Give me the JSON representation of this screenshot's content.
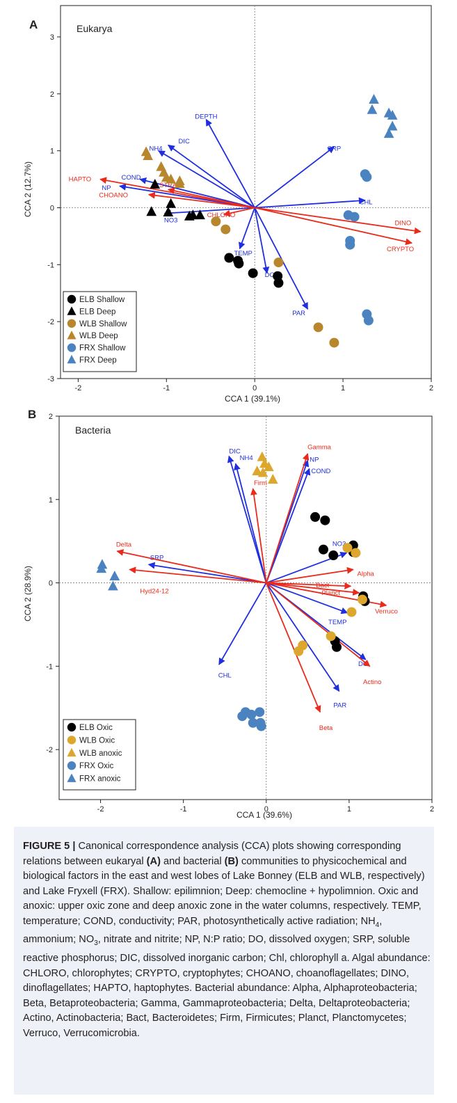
{
  "colors": {
    "env_arrow": "#1f2fe0",
    "taxa_arrow": "#ea2a1a",
    "elb": "#000000",
    "wlb_a": "#b8862c",
    "wlb_b": "#dda72d",
    "frx": "#4a83c0",
    "caption_bg": "#eef2f8"
  },
  "chart_data": [
    {
      "type": "scatter",
      "panel_label": "A",
      "title": "Eukarya",
      "xlabel": "CCA 1 (39.1%)",
      "ylabel": "CCA 2 (12.7%)",
      "xlim": [
        -2.2,
        2.0
      ],
      "ylim": [
        -3.0,
        3.55
      ],
      "xticks": [
        -2,
        -1,
        0,
        1,
        2
      ],
      "yticks": [
        -3,
        -2,
        -1,
        0,
        1,
        2,
        3
      ],
      "legend_position": "bottom-left",
      "legend": [
        {
          "label": "ELB Shallow",
          "shape": "circle",
          "color": "#000000"
        },
        {
          "label": "ELB Deep",
          "shape": "triangle",
          "color": "#000000"
        },
        {
          "label": "WLB Shallow",
          "shape": "circle",
          "color": "#b8862c"
        },
        {
          "label": "WLB Deep",
          "shape": "triangle",
          "color": "#b8862c"
        },
        {
          "label": "FRX Shallow",
          "shape": "circle",
          "color": "#4a83c0"
        },
        {
          "label": "FRX Deep",
          "shape": "triangle",
          "color": "#4a83c0"
        }
      ],
      "vectors": [
        {
          "label": "DEPTH",
          "x": -0.55,
          "y": 1.55,
          "kind": "env",
          "lx": -0.55,
          "ly": 1.6
        },
        {
          "label": "DIC",
          "x": -0.98,
          "y": 1.1,
          "kind": "env",
          "lx": -0.8,
          "ly": 1.17
        },
        {
          "label": "NH4",
          "x": -1.09,
          "y": 1.0,
          "kind": "env",
          "lx": -1.12,
          "ly": 1.04
        },
        {
          "label": "SRP",
          "x": 0.9,
          "y": 1.07,
          "kind": "env",
          "lx": 0.9,
          "ly": 1.04
        },
        {
          "label": "COND",
          "x": -1.3,
          "y": 0.5,
          "kind": "env",
          "lx": -1.4,
          "ly": 0.53
        },
        {
          "label": "NP",
          "x": -1.53,
          "y": 0.38,
          "kind": "env",
          "lx": -1.68,
          "ly": 0.35
        },
        {
          "label": "CHL",
          "x": 1.25,
          "y": 0.13,
          "kind": "env",
          "lx": 1.26,
          "ly": 0.1
        },
        {
          "label": "NO3",
          "x": -1.02,
          "y": -0.1,
          "kind": "env",
          "lx": -0.95,
          "ly": -0.22
        },
        {
          "label": "TEMP",
          "x": -0.17,
          "y": -0.72,
          "kind": "env",
          "lx": -0.13,
          "ly": -0.8
        },
        {
          "label": "DO",
          "x": 0.14,
          "y": -1.15,
          "kind": "env",
          "lx": 0.17,
          "ly": -1.18
        },
        {
          "label": "PAR",
          "x": 0.6,
          "y": -1.78,
          "kind": "env",
          "lx": 0.5,
          "ly": -1.85
        },
        {
          "label": "HAPTO",
          "x": -1.75,
          "y": 0.5,
          "kind": "taxa",
          "lx": -1.98,
          "ly": 0.5
        },
        {
          "label": "CHOANO",
          "x": -1.2,
          "y": 0.23,
          "kind": "taxa",
          "lx": -1.6,
          "ly": 0.22
        },
        {
          "label": "STRAM",
          "x": -0.98,
          "y": 0.32,
          "kind": "taxa",
          "lx": -0.95,
          "ly": 0.4
        },
        {
          "label": "CHLORO",
          "x": -0.35,
          "y": -0.12,
          "kind": "taxa",
          "lx": -0.38,
          "ly": -0.13
        },
        {
          "label": "DINO",
          "x": 1.88,
          "y": -0.42,
          "kind": "taxa",
          "lx": 1.68,
          "ly": -0.27
        },
        {
          "label": "CRYPTO",
          "x": 1.78,
          "y": -0.62,
          "kind": "taxa",
          "lx": 1.65,
          "ly": -0.73
        }
      ],
      "series": [
        {
          "name": "ELB Shallow",
          "shape": "circle",
          "color": "#000000",
          "points": [
            [
              -0.29,
              -0.88
            ],
            [
              -0.19,
              -0.93
            ],
            [
              -0.18,
              -0.98
            ],
            [
              -0.02,
              -1.15
            ],
            [
              0.26,
              -1.2
            ],
            [
              0.27,
              -1.32
            ]
          ]
        },
        {
          "name": "ELB Deep",
          "shape": "triangle",
          "color": "#000000",
          "points": [
            [
              -1.13,
              0.41
            ],
            [
              -1.17,
              -0.07
            ],
            [
              -0.95,
              0.07
            ],
            [
              -0.98,
              -0.08
            ],
            [
              -0.74,
              -0.15
            ],
            [
              -0.7,
              -0.13
            ],
            [
              -0.62,
              -0.13
            ]
          ]
        },
        {
          "name": "WLB Shallow",
          "shape": "circle",
          "color": "#b8862c",
          "points": [
            [
              -0.44,
              -0.24
            ],
            [
              -0.33,
              -0.38
            ],
            [
              0.27,
              -0.96
            ],
            [
              0.72,
              -2.1
            ],
            [
              0.9,
              -2.37
            ]
          ]
        },
        {
          "name": "WLB Deep",
          "shape": "triangle",
          "color": "#b8862c",
          "points": [
            [
              -1.23,
              0.98
            ],
            [
              -1.21,
              0.91
            ],
            [
              -1.06,
              0.72
            ],
            [
              -1.03,
              0.62
            ],
            [
              -1.0,
              0.53
            ],
            [
              -0.95,
              0.5
            ],
            [
              -0.85,
              0.47
            ],
            [
              -0.85,
              0.42
            ]
          ]
        },
        {
          "name": "FRX Shallow",
          "shape": "circle",
          "color": "#4a83c0",
          "points": [
            [
              1.06,
              -0.13
            ],
            [
              1.13,
              -0.16
            ],
            [
              1.08,
              -0.58
            ],
            [
              1.08,
              -0.65
            ],
            [
              1.25,
              0.59
            ],
            [
              1.27,
              0.54
            ],
            [
              1.27,
              -1.87
            ],
            [
              1.29,
              -1.98
            ]
          ]
        },
        {
          "name": "FRX Deep",
          "shape": "triangle",
          "color": "#4a83c0",
          "points": [
            [
              1.35,
              1.9
            ],
            [
              1.33,
              1.72
            ],
            [
              1.52,
              1.66
            ],
            [
              1.56,
              1.62
            ],
            [
              1.56,
              1.43
            ],
            [
              1.52,
              1.3
            ]
          ]
        }
      ]
    },
    {
      "type": "scatter",
      "panel_label": "B",
      "title": "Bacteria",
      "xlabel": "CCA 1 (39.6%)",
      "ylabel": "CCA 2 (28.9%)",
      "xlim": [
        -2.5,
        2.0
      ],
      "ylim": [
        -2.6,
        2.0
      ],
      "xticks": [
        -2,
        -1,
        0,
        1,
        2
      ],
      "yticks": [
        -2,
        -1,
        0,
        1,
        2
      ],
      "legend_position": "bottom-left",
      "legend": [
        {
          "label": "ELB Oxic",
          "shape": "circle",
          "color": "#000000"
        },
        {
          "label": "WLB Oxic",
          "shape": "circle",
          "color": "#dda72d"
        },
        {
          "label": "WLB anoxic",
          "shape": "triangle",
          "color": "#dda72d"
        },
        {
          "label": "FRX Oxic",
          "shape": "circle",
          "color": "#4a83c0"
        },
        {
          "label": "FRX anoxic",
          "shape": "triangle",
          "color": "#4a83c0"
        }
      ],
      "vectors": [
        {
          "label": "DIC",
          "x": -0.45,
          "y": 1.52,
          "kind": "env",
          "lx": -0.38,
          "ly": 1.58
        },
        {
          "label": "NH4",
          "x": -0.37,
          "y": 1.43,
          "kind": "env",
          "lx": -0.24,
          "ly": 1.5
        },
        {
          "label": "NP",
          "x": 0.5,
          "y": 1.47,
          "kind": "env",
          "lx": 0.58,
          "ly": 1.48
        },
        {
          "label": "COND",
          "x": 0.52,
          "y": 1.37,
          "kind": "env",
          "lx": 0.66,
          "ly": 1.34
        },
        {
          "label": "NO3",
          "x": 0.97,
          "y": 0.36,
          "kind": "env",
          "lx": 0.88,
          "ly": 0.47
        },
        {
          "label": "SRP",
          "x": -1.42,
          "y": 0.22,
          "kind": "env",
          "lx": -1.32,
          "ly": 0.3
        },
        {
          "label": "CHL",
          "x": -0.57,
          "y": -0.98,
          "kind": "env",
          "lx": -0.5,
          "ly": -1.11
        },
        {
          "label": "TEMP",
          "x": 0.98,
          "y": -0.36,
          "kind": "env",
          "lx": 0.86,
          "ly": -0.47
        },
        {
          "label": "DO",
          "x": 1.2,
          "y": -0.92,
          "kind": "env",
          "lx": 1.17,
          "ly": -0.97
        },
        {
          "label": "PAR",
          "x": 0.88,
          "y": -1.3,
          "kind": "env",
          "lx": 0.89,
          "ly": -1.47
        },
        {
          "label": "Gamma",
          "x": 0.5,
          "y": 1.55,
          "kind": "taxa",
          "lx": 0.64,
          "ly": 1.63
        },
        {
          "label": "Firm",
          "x": -0.16,
          "y": 1.13,
          "kind": "taxa",
          "lx": -0.07,
          "ly": 1.2
        },
        {
          "label": "Delta",
          "x": -1.8,
          "y": 0.38,
          "kind": "taxa",
          "lx": -1.72,
          "ly": 0.46
        },
        {
          "label": "Hyd24-12",
          "x": -1.65,
          "y": 0.16,
          "kind": "taxa",
          "lx": -1.35,
          "ly": -0.1
        },
        {
          "label": "Alpha",
          "x": 1.05,
          "y": 0.16,
          "kind": "taxa",
          "lx": 1.2,
          "ly": 0.11
        },
        {
          "label": "Bact",
          "x": 1.02,
          "y": -0.04,
          "kind": "taxa",
          "lx": 0.68,
          "ly": -0.03
        },
        {
          "label": "Planct",
          "x": 1.12,
          "y": -0.12,
          "kind": "taxa",
          "lx": 0.78,
          "ly": -0.12
        },
        {
          "label": "Verruco",
          "x": 1.45,
          "y": -0.27,
          "kind": "taxa",
          "lx": 1.45,
          "ly": -0.34
        },
        {
          "label": "Actino",
          "x": 1.25,
          "y": -1.0,
          "kind": "taxa",
          "lx": 1.28,
          "ly": -1.19
        },
        {
          "label": "Beta",
          "x": 0.65,
          "y": -1.55,
          "kind": "taxa",
          "lx": 0.72,
          "ly": -1.74
        }
      ],
      "series": [
        {
          "name": "ELB Oxic",
          "shape": "circle",
          "color": "#000000",
          "points": [
            [
              0.59,
              0.79
            ],
            [
              0.71,
              0.75
            ],
            [
              0.69,
              0.4
            ],
            [
              0.81,
              0.33
            ],
            [
              1.05,
              0.45
            ],
            [
              1.05,
              0.37
            ],
            [
              1.17,
              -0.16
            ],
            [
              1.19,
              -0.22
            ],
            [
              0.83,
              -0.7
            ],
            [
              0.85,
              -0.77
            ]
          ]
        },
        {
          "name": "WLB Oxic",
          "shape": "circle",
          "color": "#dda72d",
          "points": [
            [
              0.98,
              0.42
            ],
            [
              1.08,
              0.36
            ],
            [
              1.16,
              -0.2
            ],
            [
              1.03,
              -0.35
            ],
            [
              0.78,
              -0.64
            ],
            [
              0.44,
              -0.75
            ],
            [
              0.39,
              -0.82
            ]
          ]
        },
        {
          "name": "WLB anoxic",
          "shape": "triangle",
          "color": "#dda72d",
          "points": [
            [
              -0.05,
              1.51
            ],
            [
              -0.02,
              1.43
            ],
            [
              0.03,
              1.39
            ],
            [
              -0.11,
              1.34
            ],
            [
              -0.04,
              1.32
            ],
            [
              0.08,
              1.24
            ]
          ]
        },
        {
          "name": "FRX Oxic",
          "shape": "circle",
          "color": "#4a83c0",
          "points": [
            [
              -0.29,
              -1.6
            ],
            [
              -0.25,
              -1.55
            ],
            [
              -0.18,
              -1.58
            ],
            [
              -0.16,
              -1.68
            ],
            [
              -0.08,
              -1.55
            ],
            [
              -0.07,
              -1.68
            ],
            [
              -0.06,
              -1.72
            ]
          ]
        },
        {
          "name": "FRX anoxic",
          "shape": "triangle",
          "color": "#4a83c0",
          "points": [
            [
              -1.98,
              0.22
            ],
            [
              -1.99,
              0.17
            ],
            [
              -1.83,
              0.08
            ],
            [
              -1.85,
              -0.04
            ]
          ]
        }
      ]
    }
  ],
  "caption": {
    "figure_label": "FIGURE 5 |",
    "seg1": " Canonical correspondence analysis (CCA) plots showing corresponding relations between eukaryal ",
    "ref_a": "(A)",
    "seg2": " and bacterial ",
    "ref_b": "(B)",
    "seg3": " communities to physicochemical and biological factors in the east and west lobes of Lake Bonney (ELB and WLB, respectively) and Lake Fryxell (FRX). Shallow: epilimnion; Deep: chemocline + hypolimnion. Oxic and anoxic: upper oxic zone and deep anoxic zone in the water columns, respectively. TEMP, temperature; COND, conductivity; PAR, photosynthetically active radiation; NH",
    "sub4a": "4",
    "seg4": ", ammonium; NO",
    "sub3": "3",
    "seg5": ", nitrate and nitrite; NP, N:P ratio; DO, dissolved oxygen; SRP, soluble reactive phosphorus; DIC, dissolved inorganic carbon; Chl, chlorophyll a. Algal abundance: CHLORO, chlorophytes; CRYPTO, cryptophytes; CHOANO, choanoflagellates; DINO, dinoflagellates; HAPTO, haptophytes. Bacterial abundance: Alpha, Alphaproteobacteria; Beta, Betaproteobacteria; Gamma, Gammaproteobacteria; Delta, Deltaproteobacteria; Actino, Actinobacteria; Bact, Bacteroidetes; Firm, Firmicutes; Planct, Planctomycetes; Verruco, Verrucomicrobia."
  }
}
